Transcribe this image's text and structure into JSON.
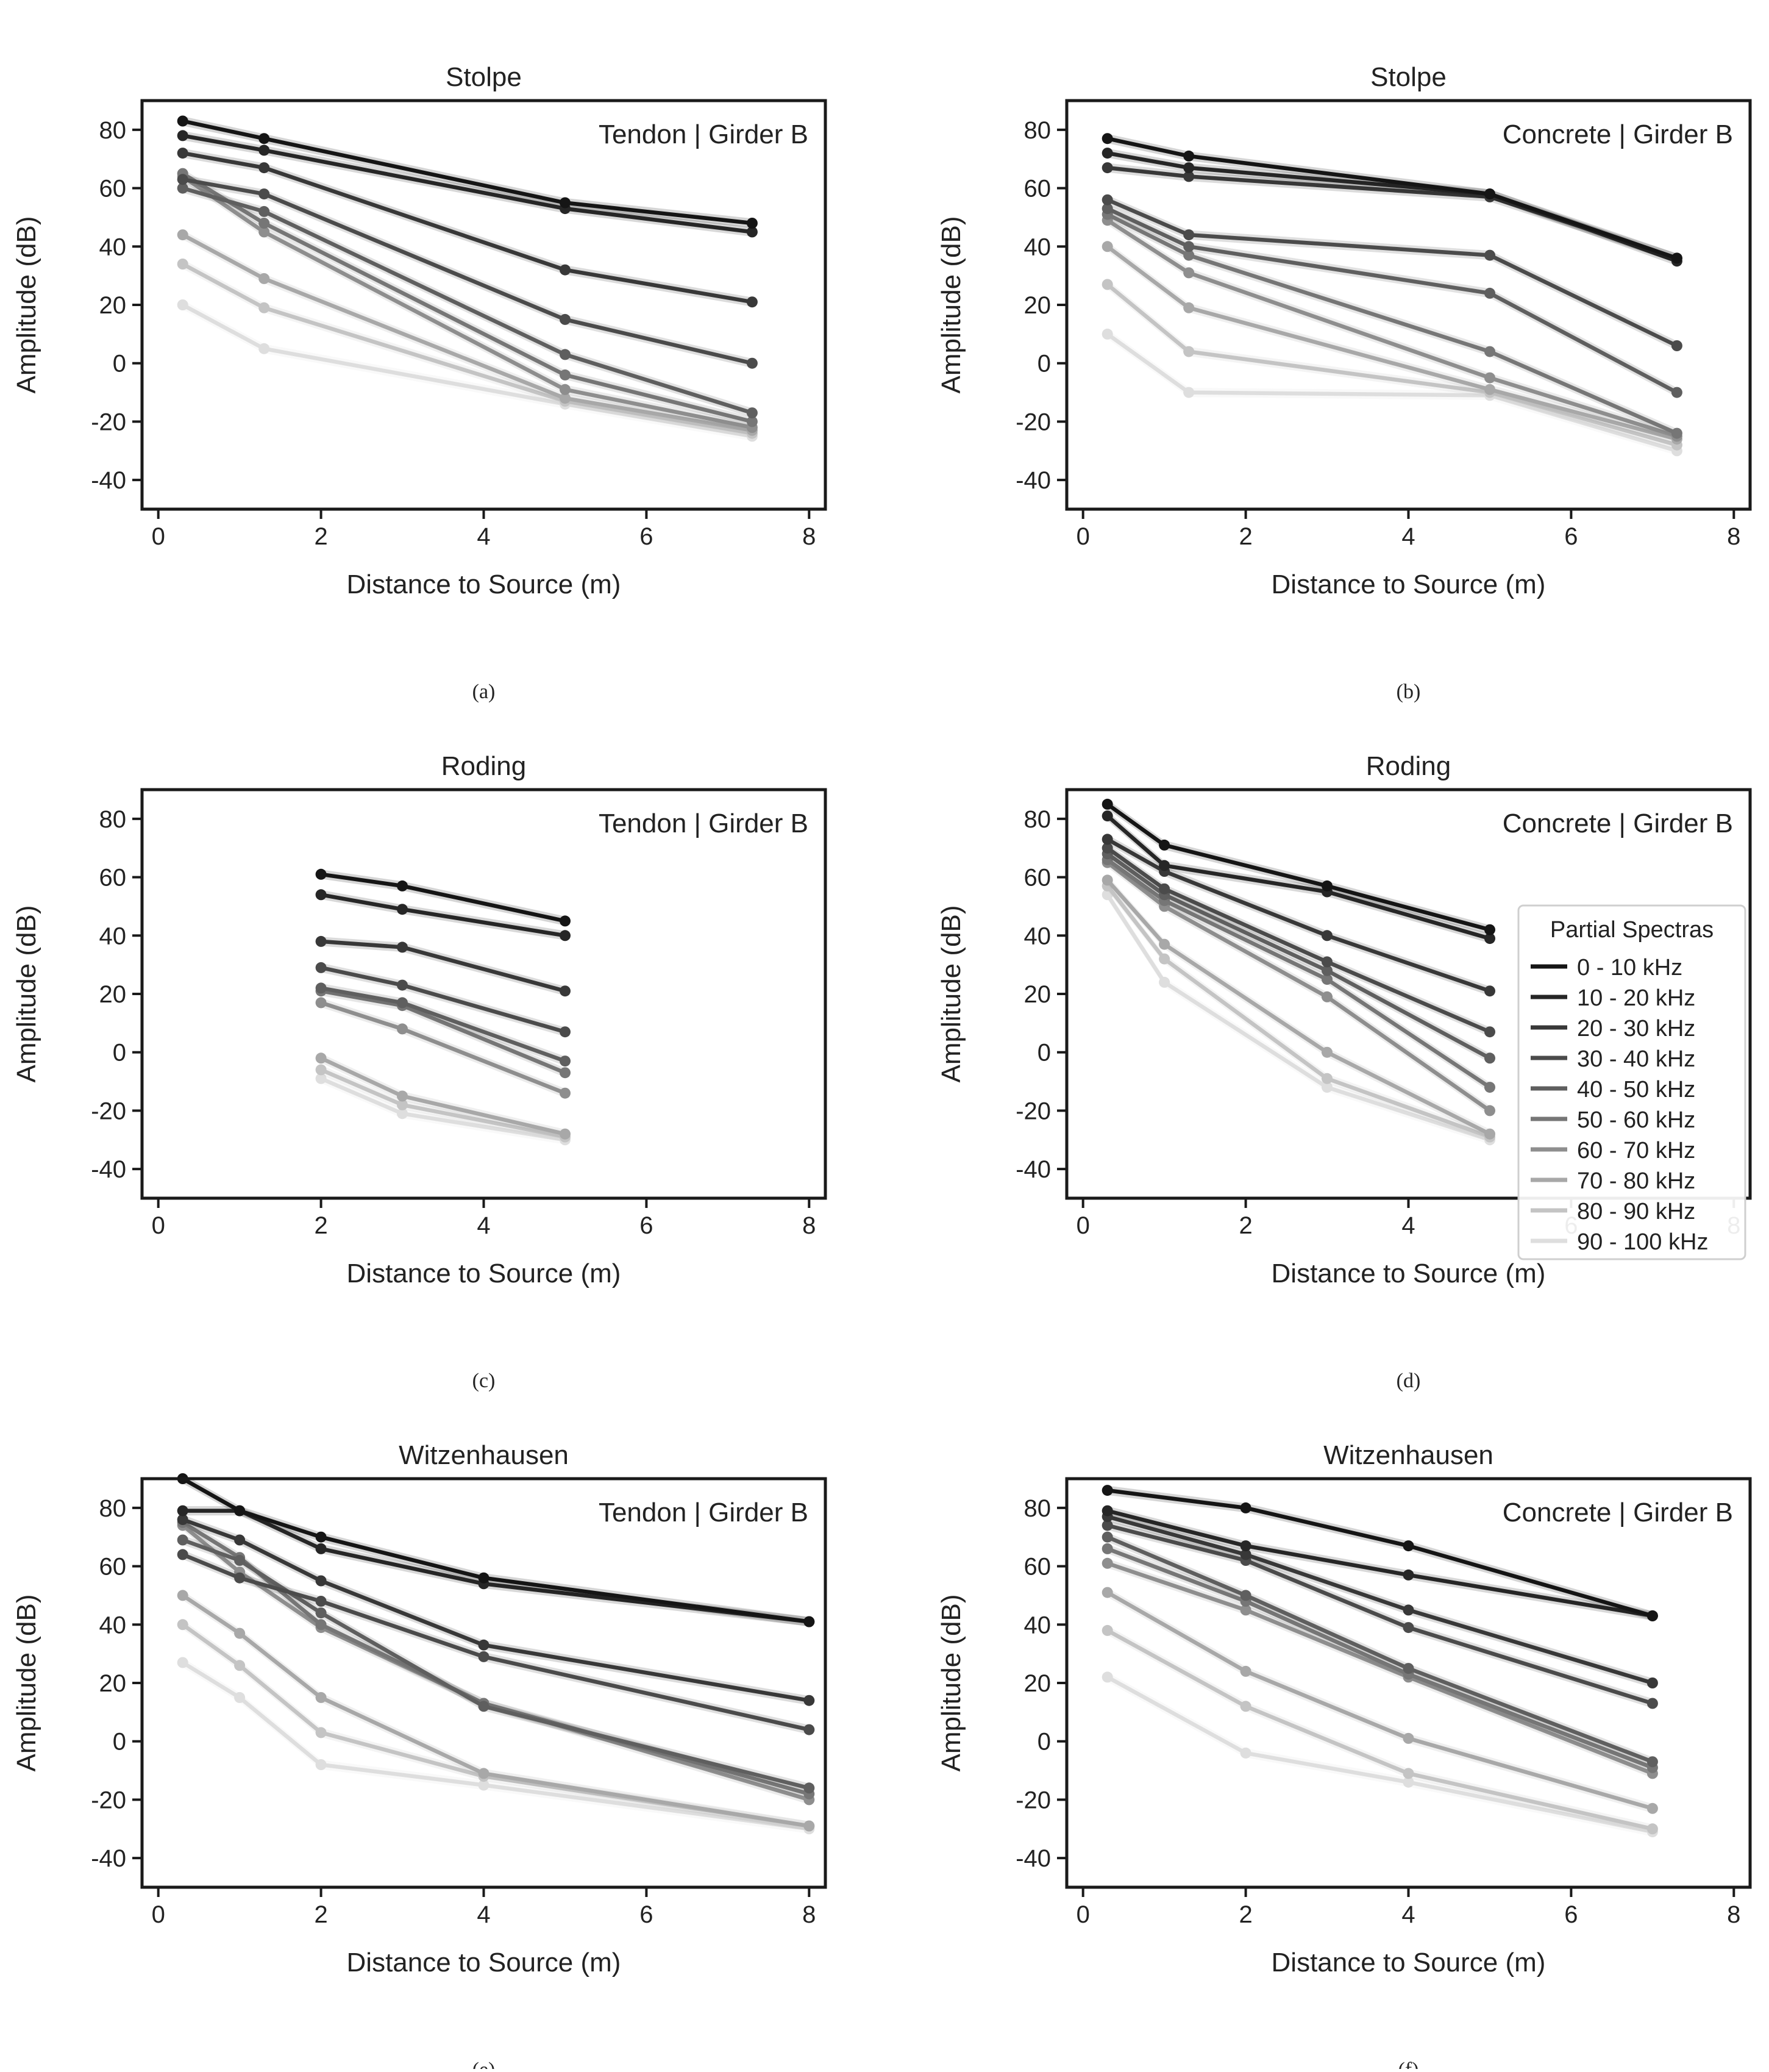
{
  "figure": {
    "legend": {
      "title": "Partial Spectras",
      "entries": [
        "0 - 10 kHz",
        "10 - 20 kHz",
        "20 - 30 kHz",
        "30 - 40 kHz",
        "40 - 50 kHz",
        "50 - 60 kHz",
        "60 - 70 kHz",
        "70 - 80 kHz",
        "80 - 90 kHz",
        "90 - 100 kHz"
      ]
    },
    "series_colors": [
      "#151515",
      "#262626",
      "#383838",
      "#4b4b4b",
      "#5f5f5f",
      "#767676",
      "#8e8e8e",
      "#a8a8a8",
      "#c4c4c4",
      "#dedede"
    ]
  },
  "chart_data": [
    {
      "type": "line",
      "panel": "a",
      "caption": "(a)",
      "title": "Stolpe",
      "annotation": "Tendon | Girder B",
      "xlabel": "Distance to Source (m)",
      "ylabel": "Amplitude (dB)",
      "xlim": [
        -0.2,
        8.2
      ],
      "ylim": [
        -50,
        90
      ],
      "xticks": [
        0,
        2,
        4,
        6,
        8
      ],
      "yticks": [
        -40,
        -20,
        0,
        20,
        40,
        60,
        80
      ],
      "x": [
        0.3,
        1.3,
        5.0,
        7.3
      ],
      "series": [
        {
          "name": "0 - 10 kHz",
          "values": [
            83,
            77,
            55,
            48
          ]
        },
        {
          "name": "10 - 20 kHz",
          "values": [
            78,
            73,
            53,
            45
          ]
        },
        {
          "name": "20 - 30 kHz",
          "values": [
            72,
            67,
            32,
            21
          ]
        },
        {
          "name": "30 - 40 kHz",
          "values": [
            63,
            58,
            15,
            0
          ]
        },
        {
          "name": "40 - 50 kHz",
          "values": [
            60,
            52,
            3,
            -17
          ]
        },
        {
          "name": "50 - 60 kHz",
          "values": [
            65,
            48,
            -4,
            -20
          ]
        },
        {
          "name": "60 - 70 kHz",
          "values": [
            64,
            45,
            -9,
            -22
          ]
        },
        {
          "name": "70 - 80 kHz",
          "values": [
            44,
            29,
            -12,
            -23
          ]
        },
        {
          "name": "80 - 90 kHz",
          "values": [
            34,
            19,
            -13,
            -24
          ]
        },
        {
          "name": "90 - 100 kHz",
          "values": [
            20,
            5,
            -14,
            -25
          ]
        }
      ]
    },
    {
      "type": "line",
      "panel": "b",
      "caption": "(b)",
      "title": "Stolpe",
      "annotation": "Concrete | Girder B",
      "xlabel": "Distance to Source (m)",
      "ylabel": "Amplitude (dB)",
      "xlim": [
        -0.2,
        8.2
      ],
      "ylim": [
        -50,
        90
      ],
      "xticks": [
        0,
        2,
        4,
        6,
        8
      ],
      "yticks": [
        -40,
        -20,
        0,
        20,
        40,
        60,
        80
      ],
      "x": [
        0.3,
        1.3,
        5.0,
        7.3
      ],
      "series": [
        {
          "name": "0 - 10 kHz",
          "values": [
            77,
            71,
            58,
            36
          ]
        },
        {
          "name": "10 - 20 kHz",
          "values": [
            72,
            67,
            58,
            35
          ]
        },
        {
          "name": "20 - 30 kHz",
          "values": [
            67,
            64,
            57,
            36
          ]
        },
        {
          "name": "30 - 40 kHz",
          "values": [
            56,
            44,
            37,
            6
          ]
        },
        {
          "name": "40 - 50 kHz",
          "values": [
            53,
            40,
            24,
            -10
          ]
        },
        {
          "name": "50 - 60 kHz",
          "values": [
            51,
            37,
            4,
            -24
          ]
        },
        {
          "name": "60 - 70 kHz",
          "values": [
            49,
            31,
            -5,
            -25
          ]
        },
        {
          "name": "70 - 80 kHz",
          "values": [
            40,
            19,
            -9,
            -26
          ]
        },
        {
          "name": "80 - 90 kHz",
          "values": [
            27,
            4,
            -10,
            -28
          ]
        },
        {
          "name": "90 - 100 kHz",
          "values": [
            10,
            -10,
            -11,
            -30
          ]
        }
      ]
    },
    {
      "type": "line",
      "panel": "c",
      "caption": "(c)",
      "title": "Roding",
      "annotation": "Tendon | Girder B",
      "xlabel": "Distance to Source (m)",
      "ylabel": "Amplitude (dB)",
      "xlim": [
        -0.2,
        8.2
      ],
      "ylim": [
        -50,
        90
      ],
      "xticks": [
        0,
        2,
        4,
        6,
        8
      ],
      "yticks": [
        -40,
        -20,
        0,
        20,
        40,
        60,
        80
      ],
      "x": [
        2.0,
        3.0,
        5.0
      ],
      "series": [
        {
          "name": "0 - 10 kHz",
          "values": [
            61,
            57,
            45
          ]
        },
        {
          "name": "10 - 20 kHz",
          "values": [
            54,
            49,
            40
          ]
        },
        {
          "name": "20 - 30 kHz",
          "values": [
            38,
            36,
            21
          ]
        },
        {
          "name": "30 - 40 kHz",
          "values": [
            29,
            23,
            7
          ]
        },
        {
          "name": "40 - 50 kHz",
          "values": [
            22,
            17,
            -3
          ]
        },
        {
          "name": "50 - 60 kHz",
          "values": [
            21,
            16,
            -7
          ]
        },
        {
          "name": "60 - 70 kHz",
          "values": [
            17,
            8,
            -14
          ]
        },
        {
          "name": "70 - 80 kHz",
          "values": [
            -2,
            -15,
            -28
          ]
        },
        {
          "name": "80 - 90 kHz",
          "values": [
            -6,
            -18,
            -29
          ]
        },
        {
          "name": "90 - 100 kHz",
          "values": [
            -9,
            -21,
            -30
          ]
        }
      ]
    },
    {
      "type": "line",
      "panel": "d",
      "caption": "(d)",
      "title": "Roding",
      "annotation": "Concrete | Girder B",
      "xlabel": "Distance to Source (m)",
      "ylabel": "Amplitude (dB)",
      "xlim": [
        -0.2,
        8.2
      ],
      "ylim": [
        -50,
        90
      ],
      "xticks": [
        0,
        2,
        4,
        6,
        8
      ],
      "yticks": [
        -40,
        -20,
        0,
        20,
        40,
        60,
        80
      ],
      "legend": "right",
      "x": [
        0.3,
        1.0,
        3.0,
        5.0
      ],
      "series": [
        {
          "name": "0 - 10 kHz",
          "values": [
            85,
            71,
            57,
            42
          ]
        },
        {
          "name": "10 - 20 kHz",
          "values": [
            81,
            64,
            55,
            39
          ]
        },
        {
          "name": "20 - 30 kHz",
          "values": [
            73,
            62,
            40,
            21
          ]
        },
        {
          "name": "30 - 40 kHz",
          "values": [
            70,
            56,
            31,
            7
          ]
        },
        {
          "name": "40 - 50 kHz",
          "values": [
            68,
            54,
            28,
            -2
          ]
        },
        {
          "name": "50 - 60 kHz",
          "values": [
            66,
            52,
            25,
            -12
          ]
        },
        {
          "name": "60 - 70 kHz",
          "values": [
            65,
            50,
            19,
            -20
          ]
        },
        {
          "name": "70 - 80 kHz",
          "values": [
            59,
            37,
            0,
            -28
          ]
        },
        {
          "name": "80 - 90 kHz",
          "values": [
            57,
            32,
            -9,
            -29
          ]
        },
        {
          "name": "90 - 100 kHz",
          "values": [
            54,
            24,
            -12,
            -30
          ]
        }
      ]
    },
    {
      "type": "line",
      "panel": "e",
      "caption": "(e)",
      "title": "Witzenhausen",
      "annotation": "Tendon | Girder B",
      "xlabel": "Distance to Source (m)",
      "ylabel": "Amplitude (dB)",
      "xlim": [
        -0.2,
        8.2
      ],
      "ylim": [
        -50,
        90
      ],
      "xticks": [
        0,
        2,
        4,
        6,
        8
      ],
      "yticks": [
        -40,
        -20,
        0,
        20,
        40,
        60,
        80
      ],
      "x": [
        0.3,
        1.0,
        2.0,
        4.0,
        8.0
      ],
      "series": [
        {
          "name": "0 - 10 kHz",
          "values": [
            90,
            79,
            70,
            56,
            41
          ]
        },
        {
          "name": "10 - 20 kHz",
          "values": [
            79,
            79,
            66,
            54,
            41
          ]
        },
        {
          "name": "20 - 30 kHz",
          "values": [
            76,
            69,
            55,
            33,
            14
          ]
        },
        {
          "name": "30 - 40 kHz",
          "values": [
            64,
            56,
            48,
            29,
            4
          ]
        },
        {
          "name": "40 - 50 kHz",
          "values": [
            69,
            62,
            44,
            12,
            -16
          ]
        },
        {
          "name": "50 - 60 kHz",
          "values": [
            75,
            63,
            40,
            13,
            -18
          ]
        },
        {
          "name": "60 - 70 kHz",
          "values": [
            74,
            58,
            39,
            13,
            -20
          ]
        },
        {
          "name": "70 - 80 kHz",
          "values": [
            50,
            37,
            15,
            -11,
            -29
          ]
        },
        {
          "name": "80 - 90 kHz",
          "values": [
            40,
            26,
            3,
            -12,
            -29
          ]
        },
        {
          "name": "90 - 100 kHz",
          "values": [
            27,
            15,
            -8,
            -15,
            -30
          ]
        }
      ]
    },
    {
      "type": "line",
      "panel": "f",
      "caption": "(f)",
      "title": "Witzenhausen",
      "annotation": "Concrete | Girder B",
      "xlabel": "Distance to Source (m)",
      "ylabel": "Amplitude (dB)",
      "xlim": [
        -0.2,
        8.2
      ],
      "ylim": [
        -50,
        90
      ],
      "xticks": [
        0,
        2,
        4,
        6,
        8
      ],
      "yticks": [
        -40,
        -20,
        0,
        20,
        40,
        60,
        80
      ],
      "x": [
        0.3,
        2.0,
        4.0,
        7.0
      ],
      "series": [
        {
          "name": "0 - 10 kHz",
          "values": [
            86,
            80,
            67,
            43
          ]
        },
        {
          "name": "10 - 20 kHz",
          "values": [
            79,
            67,
            57,
            43
          ]
        },
        {
          "name": "20 - 30 kHz",
          "values": [
            77,
            64,
            45,
            20
          ]
        },
        {
          "name": "30 - 40 kHz",
          "values": [
            74,
            62,
            39,
            13
          ]
        },
        {
          "name": "40 - 50 kHz",
          "values": [
            70,
            50,
            25,
            -7
          ]
        },
        {
          "name": "50 - 60 kHz",
          "values": [
            66,
            48,
            23,
            -9
          ]
        },
        {
          "name": "60 - 70 kHz",
          "values": [
            61,
            45,
            22,
            -11
          ]
        },
        {
          "name": "70 - 80 kHz",
          "values": [
            51,
            24,
            1,
            -23
          ]
        },
        {
          "name": "80 - 90 kHz",
          "values": [
            38,
            12,
            -11,
            -30
          ]
        },
        {
          "name": "90 - 100 kHz",
          "values": [
            22,
            -4,
            -14,
            -31
          ]
        }
      ]
    }
  ]
}
